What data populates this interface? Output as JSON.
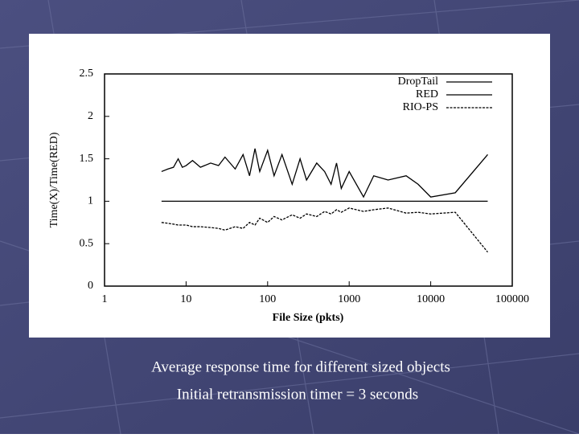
{
  "chart_data": {
    "type": "line",
    "xlabel": "File Size (pkts)",
    "ylabel": "Time(X)/Time(RED)",
    "xscale": "log",
    "xlim": [
      1,
      100000
    ],
    "xticks": [
      1,
      10,
      100,
      1000,
      10000,
      100000
    ],
    "ylim": [
      0,
      2.5
    ],
    "yticks": [
      0,
      0.5,
      1,
      1.5,
      2,
      2.5
    ],
    "legend": "top-right",
    "x": [
      5,
      6,
      7,
      8,
      9,
      10,
      12,
      15,
      20,
      25,
      30,
      40,
      50,
      60,
      70,
      80,
      100,
      120,
      150,
      200,
      250,
      300,
      400,
      500,
      600,
      700,
      800,
      1000,
      1500,
      2000,
      3000,
      5000,
      7000,
      10000,
      20000,
      50000
    ],
    "series": [
      {
        "name": "DropTail",
        "color": "#000000",
        "dash": "solid",
        "values": [
          1.35,
          1.38,
          1.4,
          1.5,
          1.4,
          1.42,
          1.48,
          1.4,
          1.45,
          1.42,
          1.52,
          1.38,
          1.55,
          1.3,
          1.62,
          1.35,
          1.6,
          1.3,
          1.55,
          1.2,
          1.5,
          1.25,
          1.45,
          1.35,
          1.2,
          1.45,
          1.15,
          1.35,
          1.05,
          1.3,
          1.25,
          1.3,
          1.2,
          1.05,
          1.1,
          1.55
        ]
      },
      {
        "name": "RED",
        "color": "#000000",
        "dash": "solid",
        "values": [
          1,
          1,
          1,
          1,
          1,
          1,
          1,
          1,
          1,
          1,
          1,
          1,
          1,
          1,
          1,
          1,
          1,
          1,
          1,
          1,
          1,
          1,
          1,
          1,
          1,
          1,
          1,
          1,
          1,
          1,
          1,
          1,
          1,
          1,
          1,
          1
        ]
      },
      {
        "name": "RIO-PS",
        "color": "#000000",
        "dash": "dashed",
        "values": [
          0.75,
          0.74,
          0.73,
          0.72,
          0.72,
          0.72,
          0.7,
          0.7,
          0.69,
          0.68,
          0.66,
          0.7,
          0.68,
          0.75,
          0.72,
          0.8,
          0.75,
          0.82,
          0.78,
          0.84,
          0.8,
          0.85,
          0.82,
          0.88,
          0.85,
          0.9,
          0.87,
          0.92,
          0.88,
          0.9,
          0.92,
          0.86,
          0.87,
          0.85,
          0.87,
          0.4
        ]
      }
    ]
  },
  "slide": {
    "captions": [
      "Average response time for different sized objects",
      "Initial retransmission timer = 3 seconds"
    ]
  }
}
